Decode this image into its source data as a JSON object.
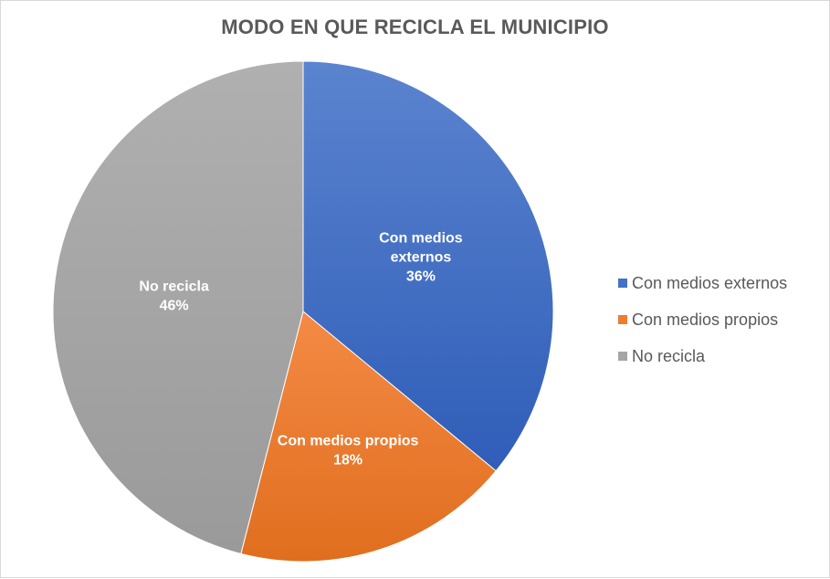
{
  "chart_data": {
    "type": "pie",
    "title": "MODO EN QUE RECICLA EL MUNICIPIO",
    "slices": [
      {
        "name": "Con medios externos",
        "label_lines": [
          "Con medios",
          "externos"
        ],
        "value": 36,
        "value_label": "36%",
        "color": "#4472C4"
      },
      {
        "name": "Con medios propios",
        "label_lines": [
          "Con medios propios"
        ],
        "value": 18,
        "value_label": "18%",
        "color": "#ED7D31"
      },
      {
        "name": "No recicla",
        "label_lines": [
          "No recicla"
        ],
        "value": 46,
        "value_label": "46%",
        "color": "#A5A5A5"
      }
    ],
    "legend_position": "right"
  }
}
